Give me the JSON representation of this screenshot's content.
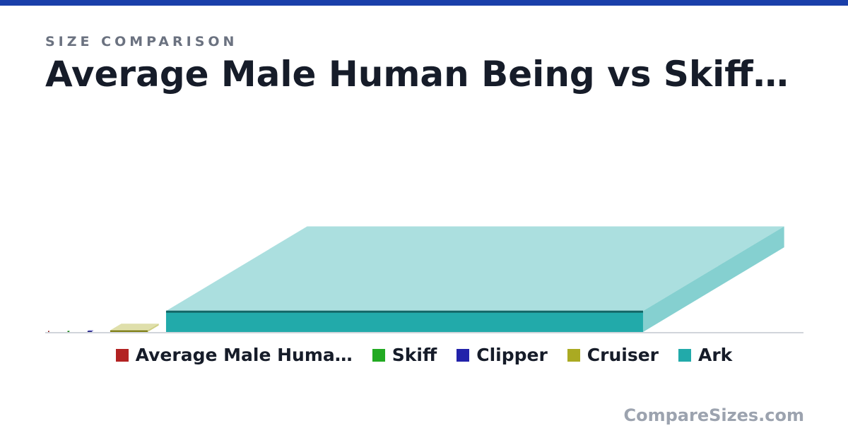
{
  "header": {
    "kicker": "SIZE COMPARISON",
    "title": "Average Male Human Being vs Skiff…"
  },
  "branding": {
    "site": "CompareSizes.com"
  },
  "colors": {
    "accent_bar": "#1a3faa"
  },
  "chart_data": {
    "type": "bar",
    "categories": [
      "Average Male Huma…",
      "Skiff",
      "Clipper",
      "Cruiser",
      "Ark"
    ],
    "values": [
      1,
      4,
      10,
      88,
      1120
    ],
    "colors": [
      "#b22222",
      "#22aa22",
      "#2222aa",
      "#aaaa22",
      "#22aaaa"
    ],
    "grid": false,
    "legend": "bottom-center"
  }
}
